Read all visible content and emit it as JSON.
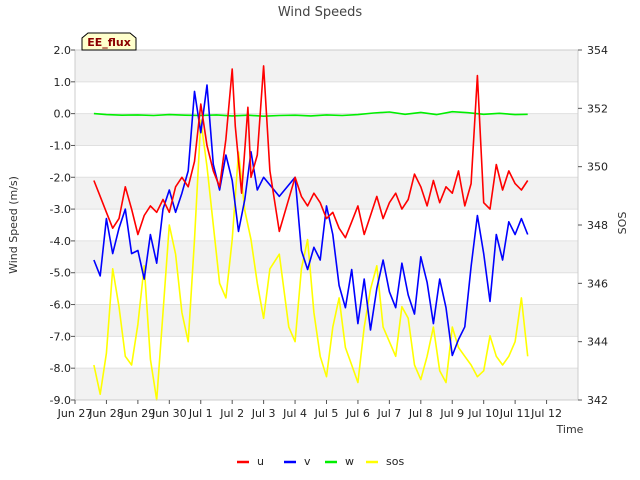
{
  "chart_data": {
    "type": "line",
    "title": "Wind Speeds",
    "badge": "EE_flux",
    "xlabel": "Time",
    "ylabel": "Wind Speed (m/s)",
    "y2label": "SOS",
    "xlim": [
      0,
      16
    ],
    "ylim": [
      -9,
      2
    ],
    "y2lim": [
      342,
      354
    ],
    "x_ticks": [
      {
        "v": 0,
        "label": "Jun 27"
      },
      {
        "v": 1,
        "label": "Jun 28"
      },
      {
        "v": 2,
        "label": "Jun 29"
      },
      {
        "v": 3,
        "label": "Jun 30"
      },
      {
        "v": 4,
        "label": "Jul 1"
      },
      {
        "v": 5,
        "label": "Jul 2"
      },
      {
        "v": 6,
        "label": "Jul 3"
      },
      {
        "v": 7,
        "label": "Jul 4"
      },
      {
        "v": 8,
        "label": "Jul 5"
      },
      {
        "v": 9,
        "label": "Jul 6"
      },
      {
        "v": 10,
        "label": "Jul 7"
      },
      {
        "v": 11,
        "label": "Jul 8"
      },
      {
        "v": 12,
        "label": "Jul 9"
      },
      {
        "v": 13,
        "label": "Jul 10"
      },
      {
        "v": 14,
        "label": "Jul 11"
      },
      {
        "v": 15,
        "label": "Jul 12"
      }
    ],
    "y_ticks": [
      {
        "v": 2,
        "label": "2.0"
      },
      {
        "v": 1,
        "label": "1.0"
      },
      {
        "v": 0,
        "label": "0.0"
      },
      {
        "v": -1,
        "label": "-1.0"
      },
      {
        "v": -2,
        "label": "-2.0"
      },
      {
        "v": -3,
        "label": "-3.0"
      },
      {
        "v": -4,
        "label": "-4.0"
      },
      {
        "v": -5,
        "label": "-5.0"
      },
      {
        "v": -6,
        "label": "-6.0"
      },
      {
        "v": -7,
        "label": "-7.0"
      },
      {
        "v": -8,
        "label": "-8.0"
      },
      {
        "v": -9,
        "label": "-9.0"
      }
    ],
    "y2_ticks": [
      {
        "v": 342,
        "label": "342"
      },
      {
        "v": 344,
        "label": "344"
      },
      {
        "v": 346,
        "label": "346"
      },
      {
        "v": 348,
        "label": "348"
      },
      {
        "v": 350,
        "label": "350"
      },
      {
        "v": 352,
        "label": "352"
      },
      {
        "v": 354,
        "label": "354"
      }
    ],
    "bands": [
      [
        1,
        2
      ],
      [
        -1,
        0
      ],
      [
        -3,
        -2
      ],
      [
        -5,
        -4
      ],
      [
        -7,
        -6
      ],
      [
        -9,
        -8
      ]
    ],
    "series": [
      {
        "name": "u",
        "color": "#ff0000",
        "axis": "left",
        "x": [
          0.6,
          0.8,
          1.0,
          1.2,
          1.4,
          1.6,
          1.8,
          2.0,
          2.2,
          2.4,
          2.6,
          2.8,
          3.0,
          3.2,
          3.4,
          3.6,
          3.8,
          4.0,
          4.2,
          4.4,
          4.6,
          4.8,
          5.0,
          5.1,
          5.3,
          5.5,
          5.6,
          5.8,
          6.0,
          6.2,
          6.5,
          7.0,
          7.2,
          7.4,
          7.6,
          7.8,
          8.0,
          8.2,
          8.4,
          8.6,
          8.8,
          9.0,
          9.2,
          9.4,
          9.6,
          9.8,
          10.0,
          10.2,
          10.4,
          10.6,
          10.8,
          11.0,
          11.2,
          11.4,
          11.6,
          11.8,
          12.0,
          12.2,
          12.4,
          12.6,
          12.8,
          13.0,
          13.2,
          13.4,
          13.6,
          13.8,
          14.0,
          14.2,
          14.4
        ],
        "values": [
          -2.1,
          -2.6,
          -3.1,
          -3.6,
          -3.3,
          -2.3,
          -3.0,
          -3.8,
          -3.2,
          -2.9,
          -3.1,
          -2.7,
          -3.1,
          -2.3,
          -2.0,
          -2.3,
          -1.5,
          0.3,
          -1.0,
          -1.8,
          -2.3,
          -0.8,
          1.4,
          -0.4,
          -2.5,
          0.2,
          -2.0,
          -1.3,
          1.5,
          -1.8,
          -3.7,
          -2.0,
          -2.6,
          -2.9,
          -2.5,
          -2.8,
          -3.3,
          -3.1,
          -3.6,
          -3.9,
          -3.4,
          -2.9,
          -3.8,
          -3.2,
          -2.6,
          -3.3,
          -2.8,
          -2.5,
          -3.0,
          -2.7,
          -1.9,
          -2.3,
          -2.9,
          -2.1,
          -2.8,
          -2.3,
          -2.5,
          -1.8,
          -2.9,
          -2.2,
          1.2,
          -2.8,
          -3.0,
          -1.6,
          -2.4,
          -1.8,
          -2.2,
          -2.4,
          -2.1
        ]
      },
      {
        "name": "v",
        "color": "#0000ff",
        "axis": "left",
        "x": [
          0.6,
          0.8,
          1.0,
          1.2,
          1.4,
          1.6,
          1.8,
          2.0,
          2.2,
          2.4,
          2.6,
          2.8,
          3.0,
          3.2,
          3.4,
          3.6,
          3.8,
          4.0,
          4.2,
          4.4,
          4.6,
          4.8,
          5.0,
          5.2,
          5.4,
          5.6,
          5.8,
          6.0,
          6.5,
          7.0,
          7.2,
          7.4,
          7.6,
          7.8,
          8.0,
          8.2,
          8.4,
          8.6,
          8.8,
          9.0,
          9.2,
          9.4,
          9.6,
          9.8,
          10.0,
          10.2,
          10.4,
          10.6,
          10.8,
          11.0,
          11.2,
          11.4,
          11.6,
          11.8,
          12.0,
          12.2,
          12.4,
          12.6,
          12.8,
          13.0,
          13.2,
          13.4,
          13.6,
          13.8,
          14.0,
          14.2,
          14.4
        ],
        "values": [
          -4.6,
          -5.1,
          -3.3,
          -4.4,
          -3.6,
          -3.0,
          -4.4,
          -4.3,
          -5.2,
          -3.8,
          -4.7,
          -3.0,
          -2.4,
          -3.1,
          -2.5,
          -1.8,
          0.7,
          -0.6,
          0.9,
          -1.6,
          -2.4,
          -1.3,
          -2.1,
          -3.7,
          -2.7,
          -1.2,
          -2.4,
          -2.0,
          -2.6,
          -2.0,
          -4.3,
          -4.9,
          -4.2,
          -4.6,
          -2.9,
          -3.8,
          -5.4,
          -6.1,
          -4.9,
          -6.6,
          -5.2,
          -6.8,
          -5.5,
          -4.6,
          -5.6,
          -6.1,
          -4.7,
          -5.7,
          -6.3,
          -4.5,
          -5.3,
          -6.6,
          -5.2,
          -6.1,
          -7.6,
          -7.1,
          -6.7,
          -4.8,
          -3.2,
          -4.4,
          -5.9,
          -3.8,
          -4.6,
          -3.4,
          -3.8,
          -3.3,
          -3.8
        ]
      },
      {
        "name": "w",
        "color": "#00ee00",
        "axis": "left",
        "x": [
          0.6,
          1.0,
          1.5,
          2.0,
          2.5,
          3.0,
          3.5,
          4.0,
          4.5,
          5.0,
          5.5,
          6.0,
          6.5,
          7.0,
          7.5,
          8.0,
          8.5,
          9.0,
          9.5,
          10.0,
          10.5,
          11.0,
          11.5,
          12.0,
          12.5,
          13.0,
          13.5,
          14.0,
          14.4
        ],
        "values": [
          0.0,
          -0.03,
          -0.05,
          -0.04,
          -0.06,
          -0.03,
          -0.05,
          -0.06,
          -0.04,
          -0.07,
          -0.05,
          -0.08,
          -0.06,
          -0.05,
          -0.07,
          -0.04,
          -0.06,
          -0.03,
          0.02,
          0.05,
          -0.02,
          0.04,
          -0.03,
          0.06,
          0.03,
          -0.02,
          0.01,
          -0.03,
          -0.02
        ]
      },
      {
        "name": "sos",
        "color": "#ffff00",
        "axis": "right",
        "x": [
          0.6,
          0.8,
          1.0,
          1.2,
          1.4,
          1.6,
          1.8,
          2.0,
          2.2,
          2.4,
          2.6,
          2.8,
          3.0,
          3.2,
          3.4,
          3.6,
          3.8,
          4.0,
          4.2,
          4.4,
          4.6,
          4.8,
          5.0,
          5.2,
          5.4,
          5.6,
          5.8,
          6.0,
          6.2,
          6.5,
          6.8,
          7.0,
          7.2,
          7.4,
          7.6,
          7.8,
          8.0,
          8.2,
          8.4,
          8.6,
          8.8,
          9.0,
          9.2,
          9.4,
          9.6,
          9.8,
          10.0,
          10.2,
          10.4,
          10.6,
          10.8,
          11.0,
          11.2,
          11.4,
          11.6,
          11.8,
          12.0,
          12.2,
          12.4,
          12.6,
          12.8,
          13.0,
          13.2,
          13.4,
          13.6,
          13.8,
          14.0,
          14.2,
          14.4
        ],
        "values": [
          343.2,
          342.2,
          343.6,
          346.5,
          345.2,
          343.5,
          343.2,
          344.6,
          346.6,
          343.4,
          342.0,
          345.0,
          348.0,
          347.0,
          345.0,
          344.0,
          347.5,
          351.6,
          350.0,
          348.0,
          346.0,
          345.5,
          347.5,
          350.5,
          348.5,
          347.5,
          346.0,
          344.8,
          346.5,
          347.0,
          344.5,
          344.0,
          346.5,
          347.5,
          345.0,
          343.5,
          342.8,
          344.5,
          345.5,
          343.8,
          343.2,
          342.6,
          344.5,
          345.8,
          346.6,
          344.5,
          344.0,
          343.5,
          345.2,
          344.8,
          343.2,
          342.7,
          343.5,
          344.5,
          343.0,
          342.6,
          344.5,
          343.8,
          343.5,
          343.2,
          342.8,
          343.0,
          344.2,
          343.5,
          343.2,
          343.5,
          344.0,
          345.5,
          343.5
        ]
      }
    ]
  }
}
